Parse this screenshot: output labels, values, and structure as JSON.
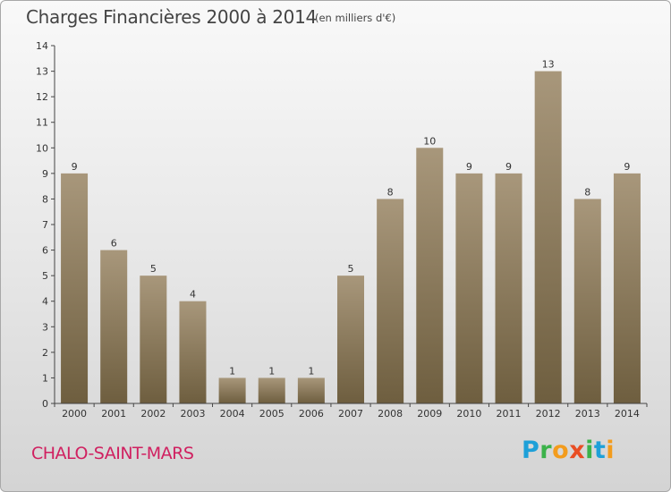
{
  "header": {
    "title": "Charges Financières 2000 à 2014",
    "unit": "(en milliers d'€)"
  },
  "footer": {
    "city": "CHALO-SAINT-MARS",
    "logo": {
      "p": "P",
      "r": "r",
      "o": "o",
      "x": "x",
      "i1": "i",
      "t": "t",
      "i2": "i"
    }
  },
  "colors": {
    "bar_top": "#a8977b",
    "bar_bottom": "#6e5e3f",
    "axis": "#444444",
    "grid": "#cfcfcf",
    "city": "#d02060"
  },
  "chart_data": {
    "type": "bar",
    "title": "Charges Financières 2000 à 2014",
    "unit": "(en milliers d'€)",
    "categories": [
      "2000",
      "2001",
      "2002",
      "2003",
      "2004",
      "2005",
      "2006",
      "2007",
      "2008",
      "2009",
      "2010",
      "2011",
      "2012",
      "2013",
      "2014"
    ],
    "values": [
      9,
      6,
      5,
      4,
      1,
      1,
      1,
      5,
      8,
      10,
      9,
      9,
      13,
      8,
      9
    ],
    "ylim": [
      0,
      14
    ],
    "yticks": [
      0,
      1,
      2,
      3,
      4,
      5,
      6,
      7,
      8,
      9,
      10,
      11,
      12,
      13,
      14
    ],
    "grid": true,
    "legend": "none"
  }
}
